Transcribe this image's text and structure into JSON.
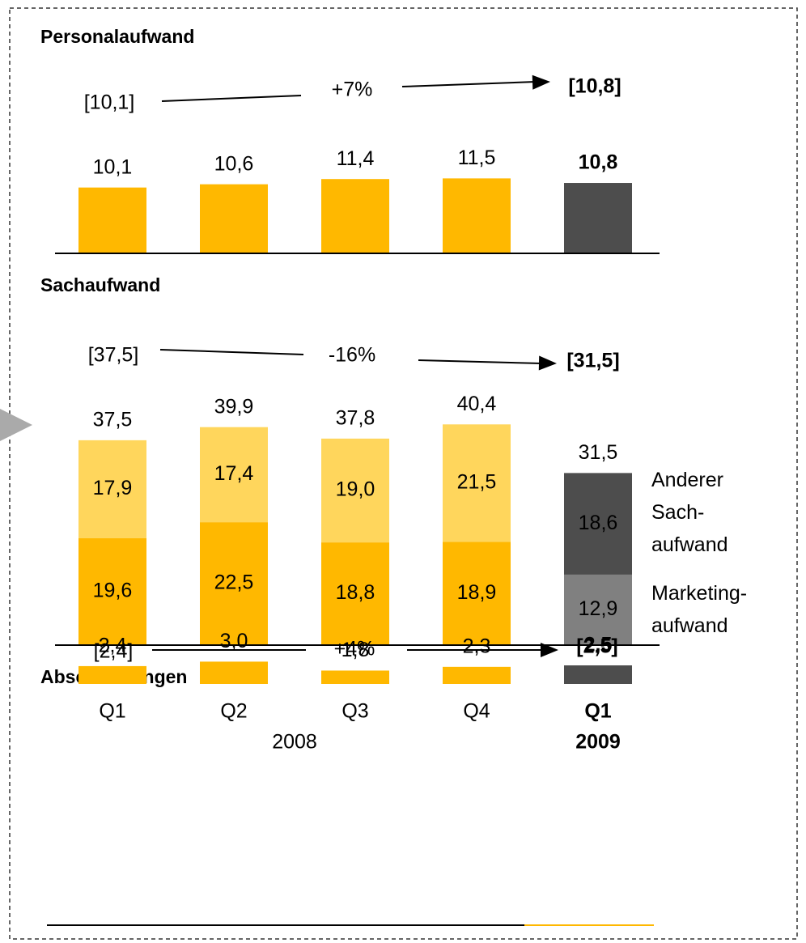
{
  "x_axis": {
    "categories": [
      "Q1",
      "Q2",
      "Q3",
      "Q4",
      "Q1"
    ],
    "groups": [
      "2008",
      "2009"
    ],
    "highlight": 4
  },
  "chart_data": [
    {
      "type": "bar",
      "title": "Personalaufwand",
      "values": [
        10.1,
        10.6,
        11.4,
        11.5,
        10.8
      ],
      "value_labels": [
        "10,1",
        "10,6",
        "11,4",
        "11,5",
        "10,8"
      ],
      "colors": [
        "#FFB800",
        "#FFB800",
        "#FFB800",
        "#FFB800",
        "#4D4D4D"
      ],
      "ylim": [
        0,
        19
      ],
      "annotation": {
        "from": "[10,1]",
        "change": "+7%",
        "to": "[10,8]"
      }
    },
    {
      "type": "stacked_bar",
      "title": "Sachaufwand",
      "series": [
        {
          "name": "Marketing-\naufwand",
          "colors": [
            "#FFB800",
            "#FFB800",
            "#FFB800",
            "#FFB800",
            "#808080"
          ],
          "values": [
            19.6,
            22.5,
            18.8,
            18.9,
            12.9
          ],
          "value_labels": [
            "19,6",
            "22,5",
            "18,8",
            "18,9",
            "12,9"
          ]
        },
        {
          "name": "Anderer\nSach-\naufwand",
          "colors": [
            "#FFD65C",
            "#FFD65C",
            "#FFD65C",
            "#FFD65C",
            "#4D4D4D"
          ],
          "values": [
            17.9,
            17.4,
            19.0,
            21.5,
            18.6
          ],
          "value_labels": [
            "17,9",
            "17,4",
            "19,0",
            "21,5",
            "18,6"
          ]
        }
      ],
      "totals": [
        37.5,
        39.9,
        37.8,
        40.4,
        31.5
      ],
      "total_labels": [
        "37,5",
        "39,9",
        "37,8",
        "40,4",
        "31,5"
      ],
      "ylim": [
        0,
        44
      ],
      "annotation": {
        "from": "[37,5]",
        "change": "-16%",
        "to": "[31,5]"
      }
    },
    {
      "type": "bar",
      "title": "Abschreibungen",
      "values": [
        2.4,
        3.0,
        1.8,
        2.3,
        2.5
      ],
      "value_labels": [
        "2,4",
        "3,0",
        "1,8",
        "2,3",
        "2,5"
      ],
      "colors": [
        "#FFB800",
        "#FFB800",
        "#FFB800",
        "#FFB800",
        "#4D4D4D"
      ],
      "ylim": [
        0,
        5
      ],
      "annotation": {
        "from": "[2,4]",
        "change": "+4%",
        "to": "[2,5]"
      }
    }
  ]
}
